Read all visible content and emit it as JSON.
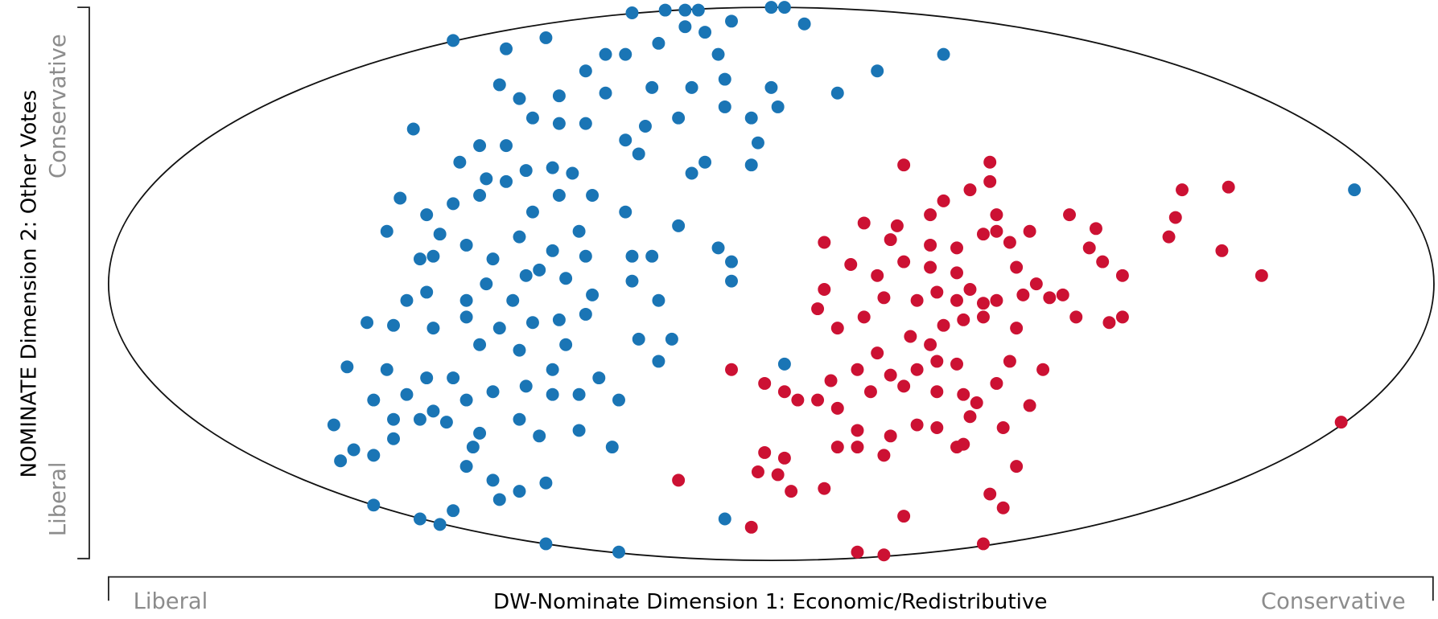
{
  "chart_data": {
    "type": "scatter",
    "xlabel": "DW-Nominate Dimension 1: Economic/Redistributive",
    "ylabel": "NOMINATE Dimension 2: Other Votes",
    "x_axis_ends": [
      "Liberal",
      "Conservative"
    ],
    "y_axis_ends": [
      "Liberal",
      "Conservative"
    ],
    "xlim": [
      -1,
      1
    ],
    "ylim": [
      -1,
      1
    ],
    "series": [
      {
        "color": "#1a75b5",
        "x": [
          -0.48,
          -0.21,
          -0.16,
          -0.13,
          -0.11,
          -0.06,
          0.0,
          0.02,
          0.05,
          -0.4,
          -0.34,
          -0.28,
          -0.25,
          -0.22,
          -0.17,
          -0.13,
          -0.1,
          -0.08,
          0.16,
          0.26,
          -0.41,
          -0.38,
          -0.32,
          -0.25,
          -0.18,
          -0.12,
          -0.07,
          0.0,
          0.01,
          0.1,
          -0.54,
          -0.44,
          -0.4,
          -0.36,
          -0.32,
          -0.28,
          -0.22,
          -0.19,
          -0.14,
          -0.07,
          -0.03,
          -0.02,
          -0.47,
          -0.43,
          -0.37,
          -0.33,
          -0.3,
          -0.27,
          -0.2,
          -0.12,
          -0.1,
          -0.03,
          -0.56,
          -0.52,
          -0.48,
          -0.44,
          -0.4,
          -0.36,
          -0.32,
          -0.29,
          -0.22,
          -0.14,
          -0.58,
          -0.53,
          -0.5,
          -0.46,
          -0.42,
          -0.38,
          -0.33,
          -0.28,
          -0.18,
          -0.08,
          -0.06,
          -0.06,
          -0.55,
          -0.52,
          -0.46,
          -0.43,
          -0.39,
          -0.35,
          -0.31,
          -0.27,
          -0.21,
          -0.17,
          -0.61,
          -0.57,
          -0.51,
          -0.46,
          -0.41,
          -0.36,
          -0.32,
          -0.28,
          -0.2,
          -0.15,
          -0.64,
          -0.58,
          -0.52,
          -0.48,
          -0.44,
          -0.38,
          -0.33,
          -0.31,
          -0.26,
          -0.17,
          -0.6,
          -0.55,
          -0.51,
          -0.46,
          -0.42,
          -0.37,
          -0.33,
          -0.29,
          -0.23,
          -0.66,
          -0.63,
          -0.57,
          -0.53,
          -0.49,
          -0.44,
          -0.38,
          -0.35,
          -0.29,
          -0.24,
          -0.65,
          -0.6,
          -0.57,
          -0.45,
          -0.46,
          -0.42,
          -0.41,
          -0.34,
          -0.38,
          -0.6,
          -0.53,
          -0.5,
          -0.48,
          -0.34,
          -0.23,
          -0.07,
          0.02,
          0.88,
          -0.21,
          -0.37,
          -0.51
        ],
        "y": [
          0.88,
          0.98,
          0.99,
          0.99,
          0.99,
          0.95,
          1.0,
          1.0,
          0.94,
          0.85,
          0.89,
          0.77,
          0.83,
          0.83,
          0.87,
          0.93,
          0.91,
          0.83,
          0.77,
          0.83,
          0.72,
          0.67,
          0.68,
          0.69,
          0.71,
          0.71,
          0.74,
          0.71,
          0.64,
          0.69,
          0.56,
          0.5,
          0.5,
          0.6,
          0.58,
          0.58,
          0.52,
          0.57,
          0.6,
          0.64,
          0.6,
          0.51,
          0.44,
          0.38,
          0.41,
          0.42,
          0.4,
          0.32,
          0.47,
          0.4,
          0.44,
          0.43,
          0.31,
          0.25,
          0.29,
          0.32,
          0.37,
          0.26,
          0.32,
          0.19,
          0.26,
          0.21,
          0.19,
          0.09,
          0.18,
          0.14,
          0.09,
          0.17,
          0.12,
          0.1,
          0.1,
          0.13,
          0.08,
          0.01,
          -0.06,
          -0.03,
          -0.06,
          0.0,
          -0.06,
          0.05,
          0.02,
          -0.04,
          0.01,
          -0.06,
          -0.14,
          -0.15,
          -0.16,
          -0.12,
          -0.16,
          -0.14,
          -0.13,
          -0.11,
          -0.2,
          -0.2,
          -0.3,
          -0.31,
          -0.34,
          -0.34,
          -0.22,
          -0.24,
          -0.31,
          -0.22,
          -0.34,
          -0.28,
          -0.42,
          -0.4,
          -0.46,
          -0.42,
          -0.39,
          -0.37,
          -0.4,
          -0.4,
          -0.42,
          -0.51,
          -0.6,
          -0.49,
          -0.49,
          -0.5,
          -0.54,
          -0.49,
          -0.55,
          -0.53,
          -0.59,
          -0.64,
          -0.62,
          -0.56,
          -0.59,
          -0.66,
          -0.71,
          -0.78,
          -0.72,
          -0.75,
          -0.8,
          -0.85,
          -0.87,
          -0.82,
          -0.94,
          -0.97,
          -0.85,
          -0.29,
          0.34,
          0.1,
          0.03,
          0.1
        ]
      },
      {
        "color": "#cc1133",
        "x": [
          0.2,
          0.33,
          0.33,
          0.3,
          0.26,
          0.62,
          0.69,
          0.14,
          0.19,
          0.24,
          0.34,
          0.39,
          0.45,
          0.49,
          0.61,
          0.6,
          0.08,
          0.18,
          0.24,
          0.28,
          0.32,
          0.34,
          0.36,
          0.48,
          0.68,
          0.74,
          0.08,
          0.12,
          0.16,
          0.2,
          0.24,
          0.28,
          0.3,
          0.37,
          0.4,
          0.44,
          0.5,
          0.53,
          0.07,
          0.1,
          0.14,
          0.17,
          0.22,
          0.25,
          0.28,
          0.32,
          0.34,
          0.38,
          0.42,
          0.46,
          0.51,
          0.53,
          0.16,
          0.21,
          0.24,
          0.26,
          0.29,
          0.32,
          0.37,
          0.25,
          -0.06,
          -0.01,
          0.02,
          0.04,
          0.07,
          0.09,
          0.13,
          0.18,
          0.22,
          0.28,
          0.36,
          0.41,
          0.15,
          0.2,
          0.25,
          0.29,
          0.31,
          0.34,
          0.39,
          0.1,
          0.13,
          0.18,
          0.22,
          0.25,
          0.3,
          0.35,
          0.1,
          0.13,
          0.17,
          0.28,
          0.29,
          0.37,
          -0.14,
          -0.01,
          0.02,
          -0.02,
          0.01,
          0.03,
          0.08,
          0.33,
          0.35,
          -0.03,
          0.2,
          0.13,
          0.17,
          0.32,
          0.86
        ],
        "y": [
          0.43,
          0.44,
          0.37,
          0.34,
          0.3,
          0.34,
          0.35,
          0.22,
          0.21,
          0.25,
          0.25,
          0.19,
          0.25,
          0.2,
          0.24,
          0.17,
          0.15,
          0.16,
          0.14,
          0.13,
          0.18,
          0.19,
          0.15,
          0.13,
          0.12,
          0.03,
          -0.02,
          0.07,
          0.03,
          0.08,
          0.06,
          0.04,
          -0.02,
          0.06,
          0.0,
          -0.04,
          0.08,
          0.03,
          -0.09,
          -0.16,
          -0.12,
          -0.05,
          -0.06,
          -0.03,
          -0.06,
          -0.07,
          -0.06,
          -0.04,
          -0.05,
          -0.12,
          -0.14,
          -0.12,
          -0.25,
          -0.19,
          -0.22,
          -0.15,
          -0.13,
          -0.12,
          -0.16,
          -0.28,
          -0.31,
          -0.36,
          -0.39,
          -0.42,
          -0.42,
          -0.35,
          -0.31,
          -0.33,
          -0.31,
          -0.29,
          -0.28,
          -0.31,
          -0.39,
          -0.37,
          -0.39,
          -0.4,
          -0.43,
          -0.36,
          -0.44,
          -0.45,
          -0.53,
          -0.55,
          -0.51,
          -0.52,
          -0.48,
          -0.52,
          -0.59,
          -0.59,
          -0.62,
          -0.59,
          -0.58,
          -0.66,
          -0.71,
          -0.61,
          -0.63,
          -0.68,
          -0.69,
          -0.75,
          -0.74,
          -0.76,
          -0.81,
          -0.88,
          -0.84,
          -0.97,
          -0.98,
          -0.94,
          -0.5
        ]
      }
    ]
  }
}
